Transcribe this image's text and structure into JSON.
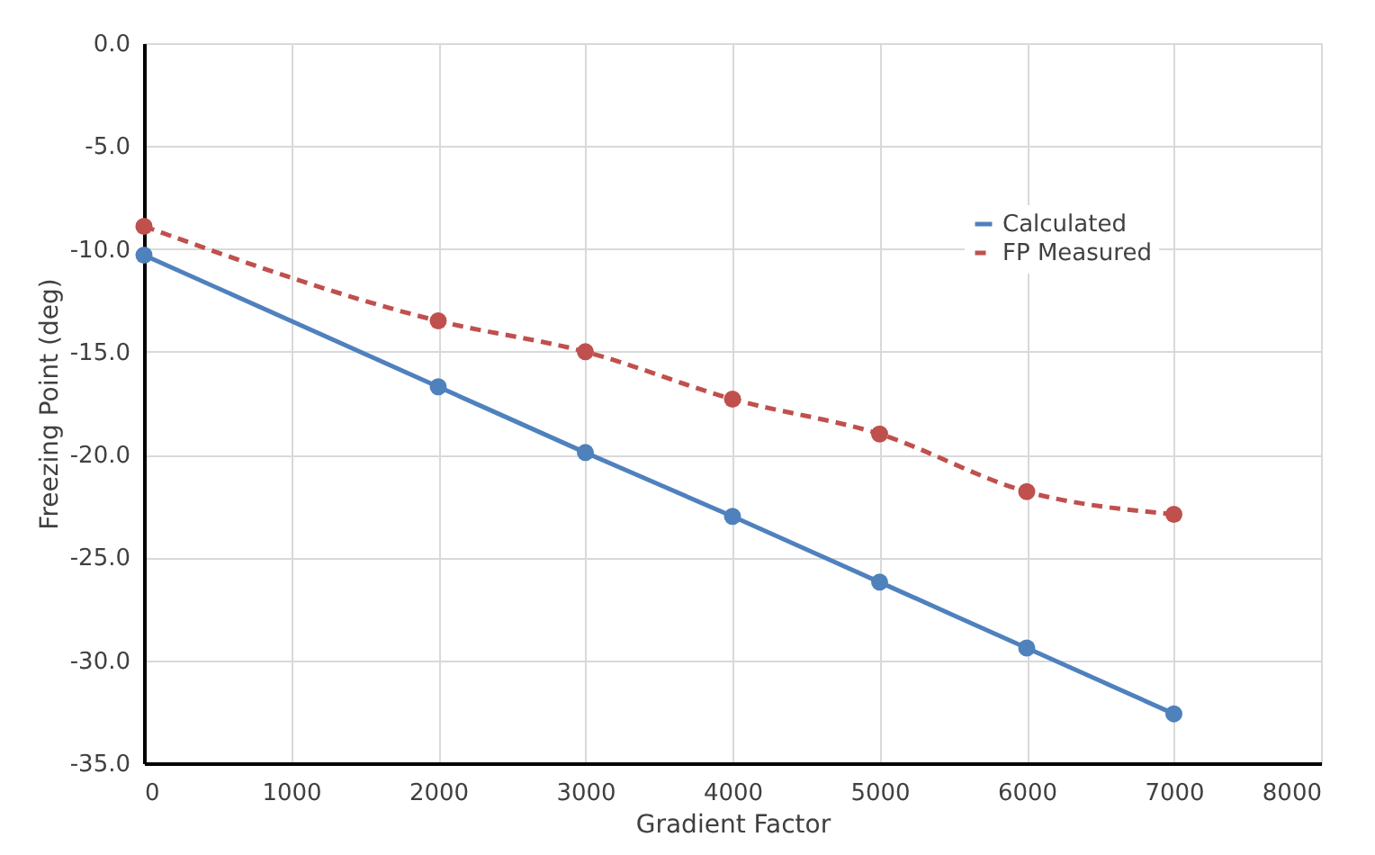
{
  "chart_data": {
    "type": "line",
    "xlabel": "Gradient Factor",
    "ylabel": "Freezing Point (deg)",
    "x": [
      0,
      2000,
      3000,
      4000,
      5000,
      6000,
      7000
    ],
    "series": [
      {
        "name": "Calculated",
        "color": "#4f81bd",
        "line_style": "solid",
        "values": [
          -10.3,
          -16.7,
          -19.9,
          -23.0,
          -26.2,
          -29.4,
          -32.6
        ]
      },
      {
        "name": "FP Measured",
        "color": "#c0504d",
        "line_style": "dashed",
        "values": [
          -8.9,
          -13.5,
          -15.0,
          -17.3,
          -19.0,
          -21.8,
          -22.9
        ]
      }
    ],
    "xlim": [
      0,
      8000
    ],
    "xticks": [
      0,
      1000,
      2000,
      3000,
      4000,
      5000,
      6000,
      7000,
      8000
    ],
    "ylim": [
      -35,
      0
    ],
    "yticks": [
      {
        "value": 0,
        "label": "0.0"
      },
      {
        "value": -5,
        "label": "-5.0"
      },
      {
        "value": -10,
        "label": "-10.0"
      },
      {
        "value": -15,
        "label": "-15.0"
      },
      {
        "value": -20,
        "label": "-20.0"
      },
      {
        "value": -25,
        "label": "-25.0"
      },
      {
        "value": -30,
        "label": "-30.0"
      },
      {
        "value": -35,
        "label": "-35.0"
      }
    ],
    "grid": true,
    "legend": "top right",
    "marker": "circle"
  }
}
